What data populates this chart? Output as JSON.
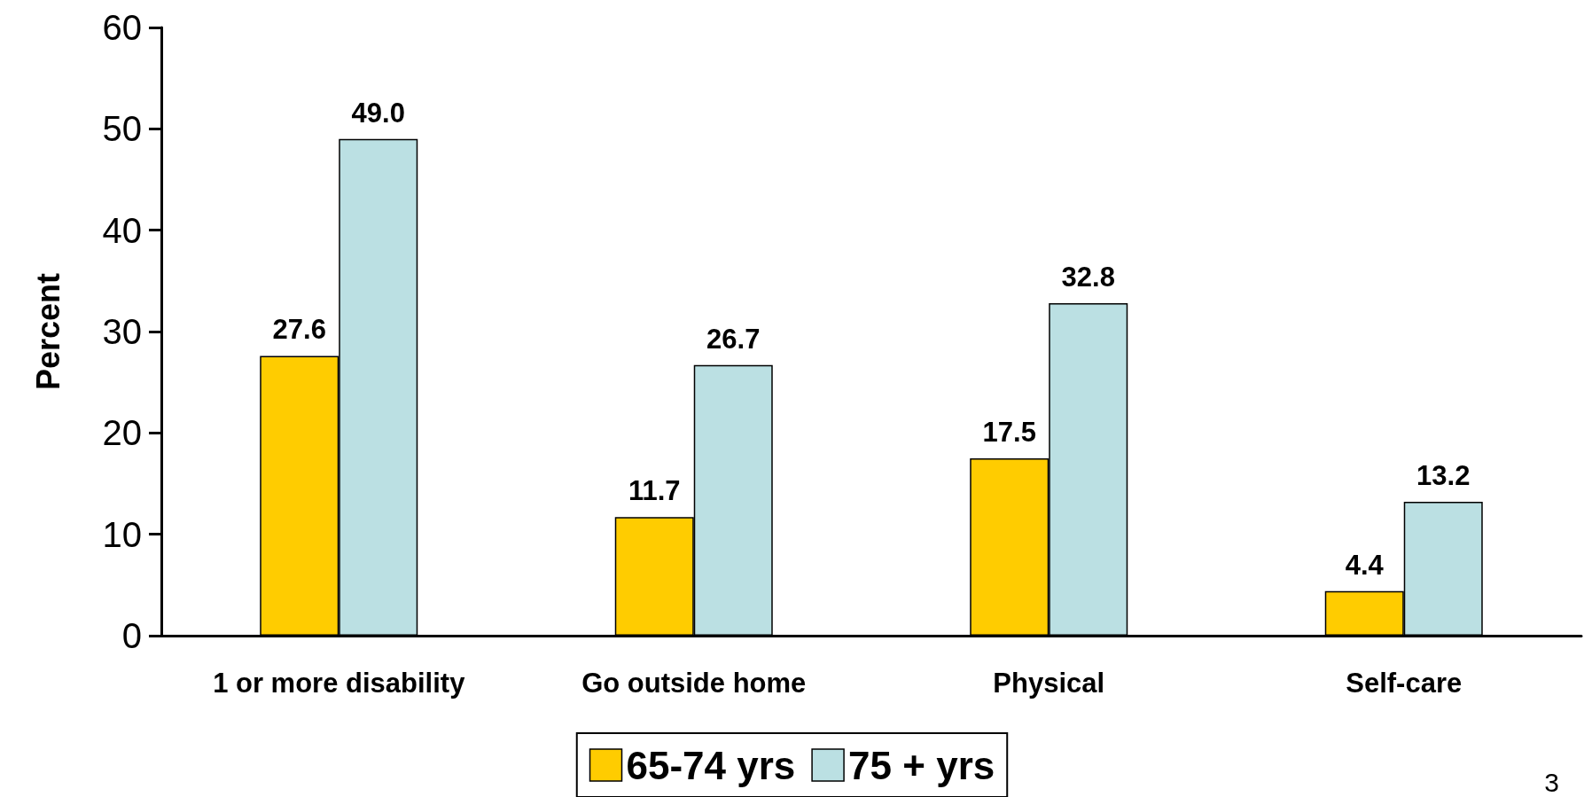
{
  "chart_data": {
    "type": "bar",
    "ylabel": "Percent",
    "categories": [
      "1 or more disability",
      "Go outside home",
      "Physical",
      "Self-care"
    ],
    "series": [
      {
        "name": "65-74 yrs",
        "color": "#ffcc00",
        "values": [
          27.6,
          11.7,
          17.5,
          4.4
        ],
        "value_labels": [
          "27.6",
          "11.7",
          "17.5",
          "4.4"
        ]
      },
      {
        "name": "75 + yrs",
        "color": "#bbe0e3",
        "values": [
          49.0,
          26.7,
          32.8,
          13.2
        ],
        "value_labels": [
          "49.0",
          "26.7",
          "32.8",
          "13.2"
        ]
      }
    ],
    "ylim": [
      0,
      60
    ],
    "yticks": [
      0,
      10,
      20,
      30,
      40,
      50,
      60
    ],
    "grid": false,
    "legend": "bottom",
    "annotations": [
      "3"
    ]
  }
}
